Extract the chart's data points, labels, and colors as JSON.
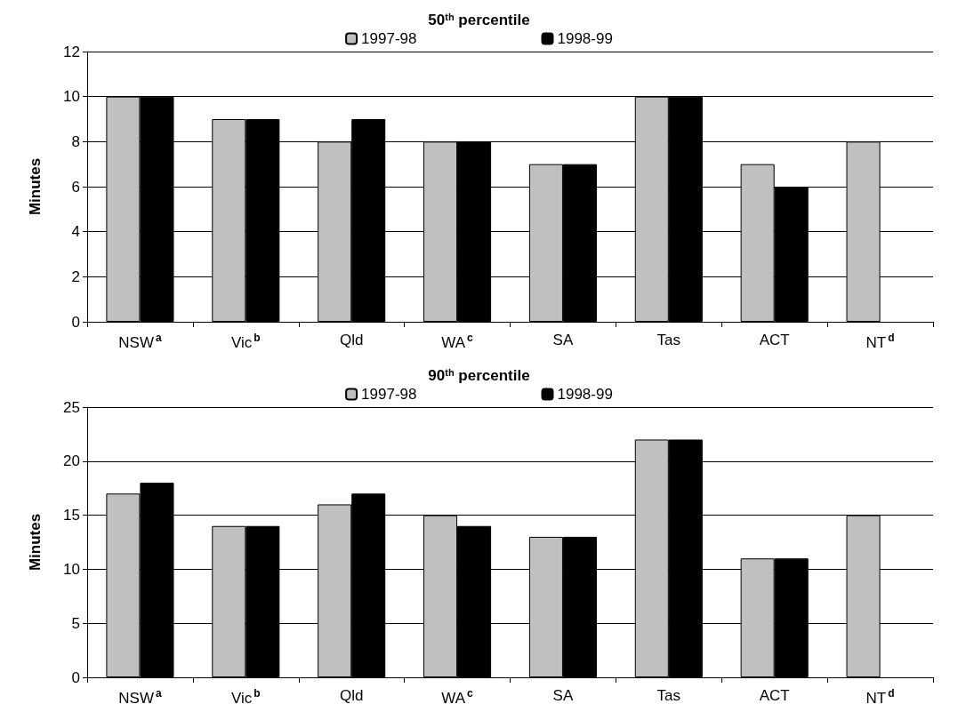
{
  "chart_data": [
    {
      "type": "bar",
      "title": "50$^{th}$ percentile",
      "ylabel": "Minutes",
      "categories": [
        "NSW$^{a}$",
        "Vic$^{b}$",
        "Qld",
        "WA$^{c}$",
        "SA",
        "Tas",
        "ACT",
        "NT$^{d}$"
      ],
      "series": [
        {
          "name": "1997-98",
          "color": "#c0c0c0",
          "values": [
            10,
            9,
            8,
            8,
            7,
            10,
            7,
            8
          ]
        },
        {
          "name": "1998-99",
          "color": "#000000",
          "values": [
            10,
            9,
            9,
            8,
            7,
            10,
            6,
            null
          ]
        }
      ],
      "ylim": [
        0,
        12
      ],
      "yticks": [
        0,
        2,
        4,
        6,
        8,
        10,
        12
      ],
      "grid": "y",
      "legend": "top"
    },
    {
      "type": "bar",
      "title": "90$^{th}$ percentile",
      "ylabel": "Minutes",
      "categories": [
        "NSW$^{a}$",
        "Vic$^{b}$",
        "Qld",
        "WA$^{c}$",
        "SA",
        "Tas",
        "ACT",
        "NT$^{d}$"
      ],
      "series": [
        {
          "name": "1997-98",
          "color": "#c0c0c0",
          "values": [
            17,
            14,
            16,
            15,
            13,
            22,
            11,
            15
          ]
        },
        {
          "name": "1998-99",
          "color": "#000000",
          "values": [
            18,
            14,
            17,
            14,
            13,
            22,
            11,
            null
          ]
        }
      ],
      "ylim": [
        0,
        25
      ],
      "yticks": [
        0,
        5,
        10,
        15,
        20,
        25
      ],
      "grid": "y",
      "legend": "top"
    }
  ]
}
